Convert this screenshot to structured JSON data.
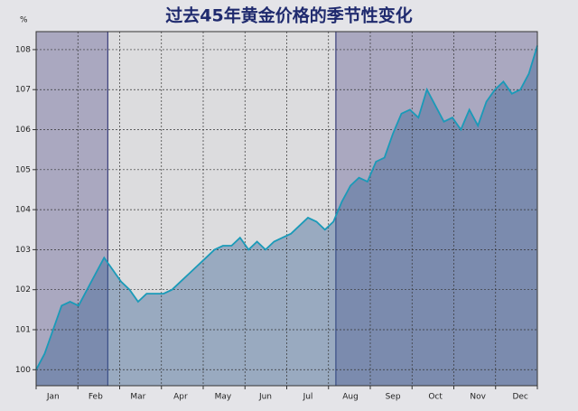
{
  "chart_data": {
    "type": "line",
    "title": "过去45年黄金价格的季节性变化",
    "y_label": "%",
    "categories": [
      null,
      null,
      "Jan",
      null,
      null,
      null,
      null,
      "Feb",
      null,
      null,
      null,
      null,
      "Mar",
      null,
      null,
      null,
      null,
      "Apr",
      null,
      null,
      null,
      null,
      "May",
      null,
      null,
      null,
      null,
      "Jun",
      null,
      null,
      null,
      null,
      "Jul",
      null,
      null,
      null,
      null,
      "Aug",
      null,
      null,
      null,
      null,
      "Sep",
      null,
      null,
      null,
      null,
      "Oct",
      null,
      null,
      null,
      null,
      "Nov",
      null,
      null,
      null,
      null,
      "Dec",
      null,
      null
    ],
    "values": [
      100.0,
      100.4,
      101.0,
      101.6,
      101.7,
      101.6,
      102.0,
      102.4,
      102.8,
      102.5,
      102.2,
      102.0,
      101.7,
      101.9,
      101.9,
      101.9,
      102.0,
      102.2,
      102.4,
      102.6,
      102.8,
      103.0,
      103.1,
      103.1,
      103.3,
      103.0,
      103.2,
      103.0,
      103.2,
      103.3,
      103.4,
      103.6,
      103.8,
      103.7,
      103.5,
      103.7,
      104.2,
      104.6,
      104.8,
      104.7,
      105.2,
      105.3,
      105.9,
      106.4,
      106.5,
      106.3,
      107.0,
      106.6,
      106.2,
      106.3,
      106.0,
      106.5,
      106.1,
      106.7,
      107.0,
      107.2,
      106.9,
      107.0,
      107.4,
      108.1
    ],
    "color": "#1a9ab8",
    "ylim": [
      99.6,
      108.45
    ],
    "yticks": [
      100,
      101,
      102,
      103,
      104,
      105,
      106,
      107,
      108
    ],
    "grid": true
  }
}
